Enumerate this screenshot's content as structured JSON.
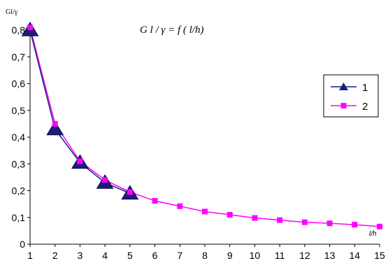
{
  "chart_data": {
    "type": "line",
    "title": "G l / γ    = f ( l/h)",
    "ylabel": "Gl/γ",
    "xlabel": "l/h",
    "x": [
      1,
      2,
      3,
      4,
      5,
      6,
      7,
      8,
      9,
      10,
      11,
      12,
      13,
      14,
      15
    ],
    "xticks": [
      "1",
      "2",
      "3",
      "4",
      "5",
      "6",
      "7",
      "8",
      "9",
      "10",
      "11",
      "12",
      "13",
      "14",
      "15"
    ],
    "ylim": [
      0,
      0.8
    ],
    "yticks": [
      "0",
      "0,1",
      "0,2",
      "0,3",
      "0,4",
      "0,5",
      "0,6",
      "0,7",
      "0,8"
    ],
    "grid": false,
    "legend_position": "right",
    "series": [
      {
        "name": "1",
        "x": [
          1,
          2,
          3,
          4,
          5
        ],
        "values": [
          0.8,
          0.43,
          0.305,
          0.23,
          0.19
        ],
        "color": "#1a1a80",
        "marker": "triangle"
      },
      {
        "name": "2",
        "x": [
          1,
          2,
          3,
          4,
          5,
          6,
          7,
          8,
          9,
          10,
          11,
          12,
          13,
          14,
          15
        ],
        "values": [
          0.81,
          0.45,
          0.31,
          0.24,
          0.195,
          0.162,
          0.142,
          0.122,
          0.11,
          0.098,
          0.09,
          0.082,
          0.078,
          0.073,
          0.066
        ],
        "color": "#ff00ff",
        "marker": "square"
      }
    ]
  }
}
